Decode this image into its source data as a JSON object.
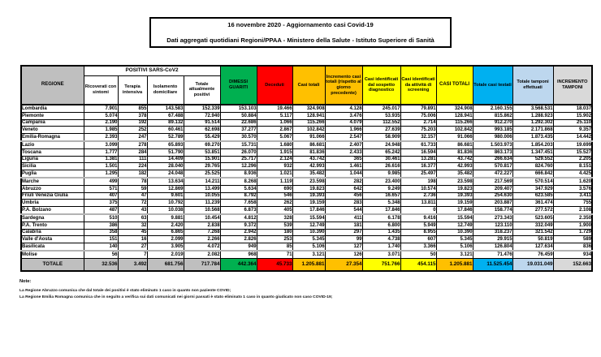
{
  "title": {
    "line1": "16 novembre 2020 - Aggiornamento casi Covid-19",
    "line2": "Dati aggregati quotidiani Regioni/PPAA - Ministero della Salute - Istituto Superiore di Sanità"
  },
  "colors": {
    "header_gray": "#BFBFBF",
    "green": "#00B050",
    "red": "#FF0000",
    "orange": "#FFC000",
    "yellow": "#FFFF00",
    "cyan": "#00B0F0",
    "light_blue": "#BDD7EE",
    "light_gray": "#D9D9D9"
  },
  "table": {
    "headers": {
      "regione": "REGIONE",
      "positivi_group": "POSITIVI SARS-CoV2",
      "sub": [
        "Ricoverati con sintomi",
        "Terapia intensiva",
        "Isolamento domiciliare",
        "Totale attualmente positivi"
      ],
      "guariti": "DIMESSI GUARITI",
      "deceduti": "Deceduti",
      "casi_totali": "Casi totali",
      "incremento": "Incremento casi totali (rispetto al giorno precedente)",
      "sospetto": "Casi identificati dal sospetto diagnostico",
      "screening": "Casi identificati da attività di screening",
      "casi_totali_2": "CASI TOTALI",
      "testati": "Totale casi testati",
      "tamponi": "Totale tamponi effettuati",
      "incremento_tamponi": "INCREMENTO TAMPONI"
    },
    "rows": [
      {
        "region": "Lombardia",
        "values": [
          "7.901",
          "855",
          "143.583",
          "152.339",
          "153.103",
          "19.466",
          "324.908",
          "4.128",
          "245.017",
          "79.891",
          "324.908",
          "2.160.155",
          "3.568.531",
          "18.037"
        ]
      },
      {
        "region": "Piemonte",
        "values": [
          "5.074",
          "378",
          "67.488",
          "72.940",
          "50.884",
          "5.117",
          "128.941",
          "3.476",
          "53.935",
          "75.006",
          "128.941",
          "815.862",
          "1.288.923",
          "15.902"
        ]
      },
      {
        "region": "Campania",
        "values": [
          "2.190",
          "192",
          "89.132",
          "91.514",
          "22.686",
          "1.066",
          "115.266",
          "4.079",
          "112.552",
          "2.714",
          "115.266",
          "912.270",
          "1.292.302",
          "25.110"
        ]
      },
      {
        "region": "Veneto",
        "values": [
          "1.985",
          "252",
          "60.461",
          "62.698",
          "37.277",
          "2.867",
          "102.842",
          "1.966",
          "27.639",
          "75.203",
          "102.842",
          "993.185",
          "2.171.868",
          "9.357"
        ]
      },
      {
        "region": "Emilia-Romagna",
        "values": [
          "2.393",
          "247",
          "52.789",
          "55.429",
          "30.570",
          "5.067",
          "91.066",
          "2.547",
          "58.909",
          "32.157",
          "91.066",
          "980.006",
          "1.873.435",
          "14.442"
        ]
      },
      {
        "region": "Lazio",
        "values": [
          "3.099",
          "278",
          "65.893",
          "69.270",
          "15.731",
          "1.680",
          "86.681",
          "2.407",
          "24.948",
          "61.733",
          "86.681",
          "1.503.973",
          "1.854.203",
          "19.699"
        ]
      },
      {
        "region": "Toscana",
        "values": [
          "1.777",
          "284",
          "51.790",
          "53.851",
          "26.070",
          "1.915",
          "81.836",
          "2.433",
          "65.242",
          "16.594",
          "81.836",
          "863.173",
          "1.347.451",
          "15.527"
        ]
      },
      {
        "region": "Liguria",
        "values": [
          "1.381",
          "111",
          "14.409",
          "15.901",
          "25.717",
          "2.124",
          "43.742",
          "365",
          "30.461",
          "13.281",
          "43.742",
          "266.634",
          "529.552",
          "2.205"
        ]
      },
      {
        "region": "Sicilia",
        "values": [
          "1.501",
          "224",
          "28.040",
          "29.765",
          "12.296",
          "932",
          "42.993",
          "1.461",
          "26.616",
          "16.377",
          "42.993",
          "570.817",
          "824.760",
          "8.151"
        ]
      },
      {
        "region": "Puglia",
        "values": [
          "1.295",
          "182",
          "24.048",
          "25.525",
          "8.936",
          "1.021",
          "35.482",
          "1.044",
          "9.985",
          "25.497",
          "35.482",
          "472.227",
          "666.842",
          "4.425"
        ]
      },
      {
        "region": "Marche",
        "values": [
          "499",
          "78",
          "13.634",
          "14.211",
          "8.268",
          "1.119",
          "23.598",
          "282",
          "23.400",
          "198",
          "23.598",
          "217.569",
          "570.514",
          "1.620"
        ]
      },
      {
        "region": "Abruzzo",
        "values": [
          "571",
          "59",
          "12.869",
          "13.499",
          "5.634",
          "690",
          "19.823",
          "642",
          "9.249",
          "10.574",
          "19.823",
          "209.407",
          "347.929",
          "3.576"
        ]
      },
      {
        "region": "Friuli Venezia Giulia",
        "values": [
          "407",
          "47",
          "9.601",
          "10.055",
          "8.792",
          "546",
          "19.393",
          "456",
          "16.657",
          "2.736",
          "19.393",
          "254.630",
          "623.585",
          "3.411"
        ]
      },
      {
        "region": "Umbria",
        "values": [
          "375",
          "72",
          "10.792",
          "11.239",
          "7.658",
          "262",
          "19.159",
          "283",
          "5.348",
          "13.811",
          "19.159",
          "203.887",
          "361.474",
          "755"
        ]
      },
      {
        "region": "P.A. Bolzano",
        "values": [
          "487",
          "43",
          "10.038",
          "10.568",
          "6.873",
          "405",
          "17.846",
          "544",
          "17.846",
          "0",
          "17.846",
          "158.774",
          "277.572",
          "2.108"
        ]
      },
      {
        "region": "Sardegna",
        "values": [
          "510",
          "63",
          "9.881",
          "10.454",
          "4.812",
          "328",
          "15.594",
          "411",
          "6.178",
          "9.416",
          "15.594",
          "273.343",
          "523.605",
          "2.350"
        ]
      },
      {
        "region": "P.A. Trento",
        "values": [
          "386",
          "32",
          "2.420",
          "2.838",
          "9.372",
          "539",
          "12.749",
          "181",
          "6.800",
          "5.949",
          "12.749",
          "123.110",
          "332.049",
          "1.900"
        ]
      },
      {
        "region": "Calabria",
        "values": [
          "358",
          "45",
          "6.865",
          "7.268",
          "2.942",
          "180",
          "10.390",
          "297",
          "1.435",
          "8.955",
          "10.390",
          "318.237",
          "321.542",
          "1.729"
        ]
      },
      {
        "region": "Valle d'Aosta",
        "values": [
          "151",
          "16",
          "2.099",
          "2.266",
          "2.826",
          "253",
          "5.345",
          "99",
          "4.738",
          "607",
          "5.345",
          "29.915",
          "50.819",
          "589"
        ]
      },
      {
        "region": "Basilicata",
        "values": [
          "140",
          "27",
          "3.905",
          "4.072",
          "949",
          "85",
          "5.106",
          "127",
          "1.740",
          "3.366",
          "5.106",
          "126.804",
          "127.634",
          "836"
        ]
      },
      {
        "region": "Molise",
        "values": [
          "56",
          "7",
          "2.019",
          "2.082",
          "968",
          "71",
          "3.121",
          "126",
          "3.071",
          "50",
          "3.121",
          "71.476",
          "76.459",
          "934"
        ]
      }
    ],
    "total": {
      "region": "TOTALE",
      "values": [
        "32.536",
        "3.492",
        "681.756",
        "717.784",
        "442.364",
        "45.733",
        "1.205.881",
        "27.354",
        "751.766",
        "454.115",
        "1.205.881",
        "11.525.454",
        "19.031.049",
        "152.663"
      ]
    }
  },
  "notes": {
    "label": "Note:",
    "items": [
      "La Regione Abruzzo comunica che dal totale dei positivi è stato eliminato 1 caso in quanto non paziente COVID;",
      "La Regione Emilia Romagna comunica che in seguito a verifica sui dati comunicati nei giorni passati è stato eliminato 1 caso in quanto giudicato non caso COVID-19;"
    ]
  }
}
